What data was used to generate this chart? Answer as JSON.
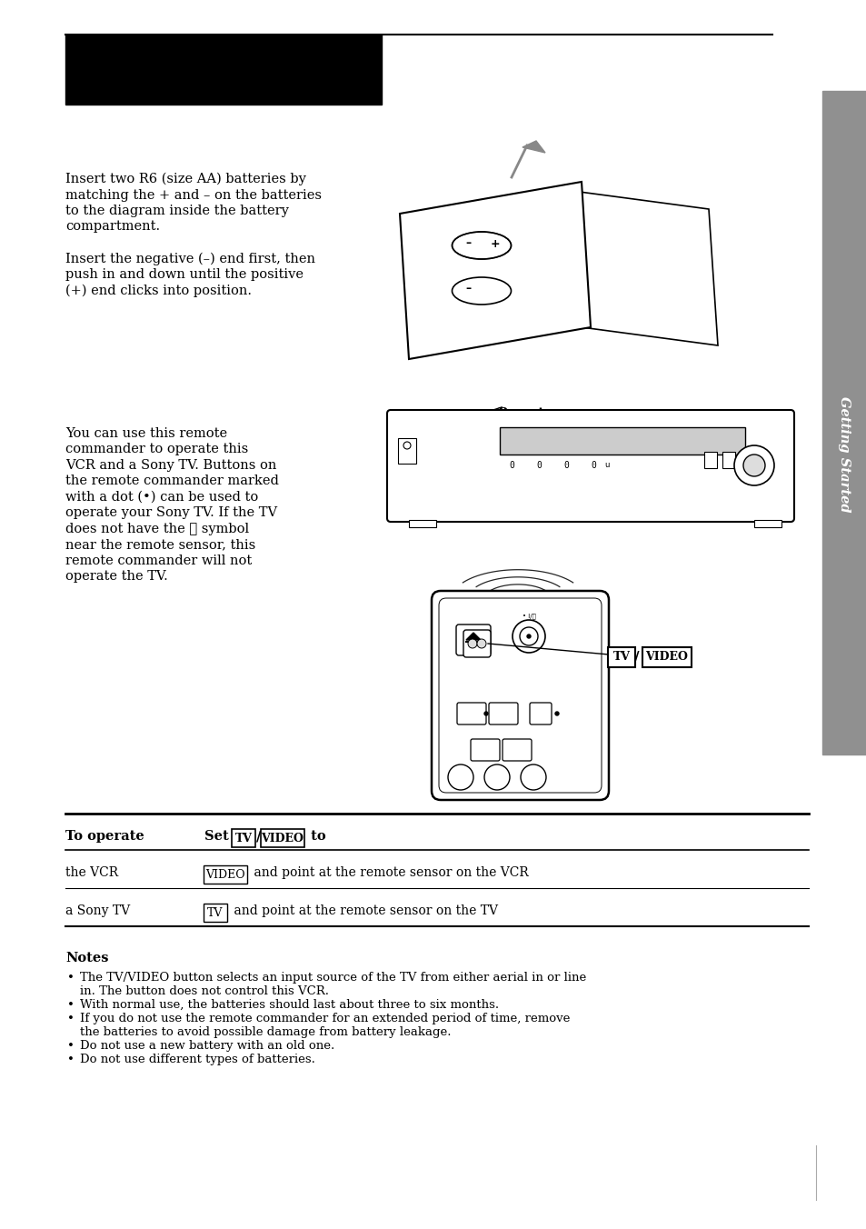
{
  "page_bg": "#ffffff",
  "header_bar_color": "#000000",
  "sidebar_color": "#909090",
  "sidebar_text": "Getting Started",
  "sidebar_text_color": "#ffffff",
  "body_text_color": "#000000",
  "font_size_body": 10.5,
  "font_size_notes": 9.5,
  "font_size_table_header": 10.5,
  "font_size_table_body": 10.0,
  "section1_lines": [
    "Insert two R6 (size AA) batteries by",
    "matching the + and – on the batteries",
    "to the diagram inside the battery",
    "compartment.",
    "",
    "Insert the negative (–) end first, then",
    "push in and down until the positive",
    "(+) end clicks into position."
  ],
  "section2_lines": [
    "You can use this remote",
    "commander to operate this",
    "VCR and a Sony TV. Buttons on",
    "the remote commander marked",
    "with a dot (•) can be used to",
    "operate your Sony TV. If the TV",
    "does not have the Ⓢ symbol",
    "near the remote sensor, this",
    "remote commander will not",
    "operate the TV."
  ],
  "notes_title": "Notes",
  "notes": [
    "The TV/VIDEO button selects an input source of the TV from either aerial in or line\nin. The button does not control this VCR.",
    "With normal use, the batteries should last about three to six months.",
    "If you do not use the remote commander for an extended period of time, remove\nthe batteries to avoid possible damage from battery leakage.",
    "Do not use a new battery with an old one.",
    "Do not use different types of batteries."
  ]
}
